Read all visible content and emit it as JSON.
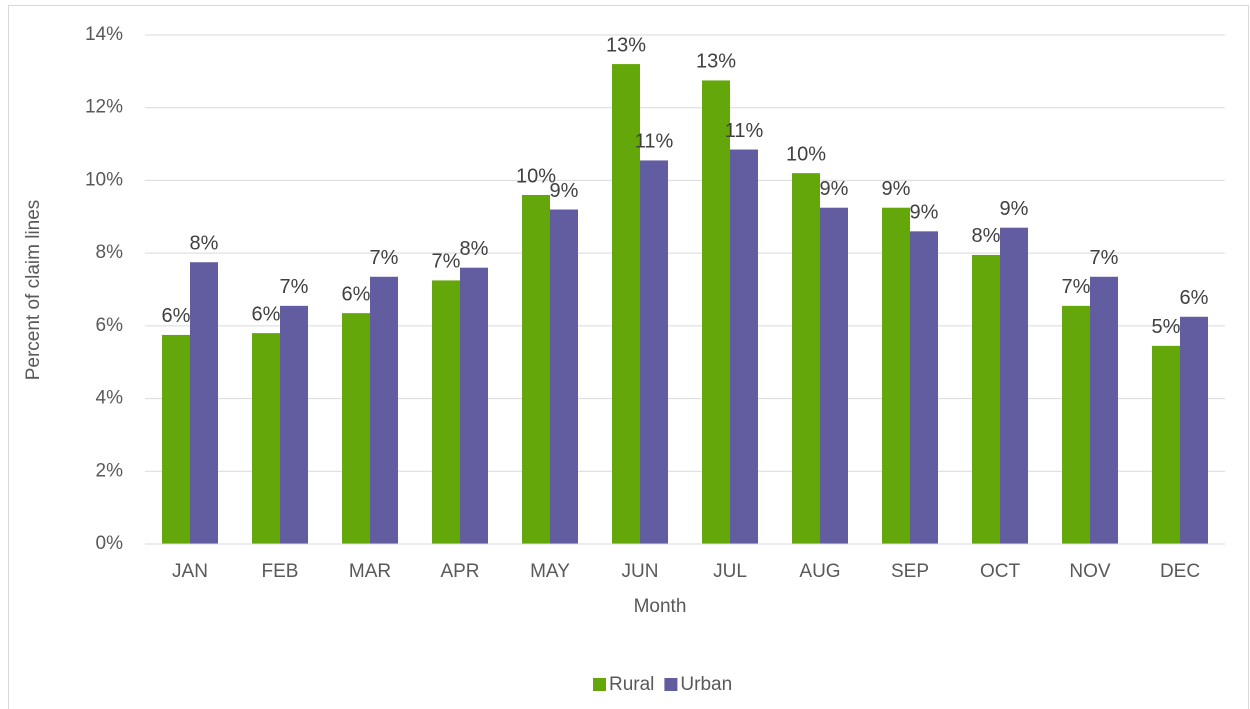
{
  "chart_data": {
    "type": "bar",
    "x_label": "Month",
    "y_label": "Percent of claim lines",
    "categories": [
      "JAN",
      "FEB",
      "MAR",
      "APR",
      "MAY",
      "JUN",
      "JUL",
      "AUG",
      "SEP",
      "OCT",
      "NOV",
      "DEC"
    ],
    "series": [
      {
        "name": "Rural",
        "color": "#63a70a",
        "values": [
          5.75,
          5.8,
          6.35,
          7.25,
          9.6,
          13.2,
          12.75,
          10.2,
          9.25,
          7.95,
          6.55,
          5.45
        ],
        "value_labels": [
          "6%",
          "6%",
          "6%",
          "7%",
          "10%",
          "13%",
          "13%",
          "10%",
          "9%",
          "8%",
          "7%",
          "5%"
        ]
      },
      {
        "name": "Urban",
        "color": "#625ca0",
        "values": [
          7.75,
          6.55,
          7.35,
          7.6,
          9.2,
          10.55,
          10.85,
          9.25,
          8.6,
          8.7,
          7.35,
          6.25
        ],
        "value_labels": [
          "8%",
          "7%",
          "7%",
          "8%",
          "9%",
          "11%",
          "11%",
          "9%",
          "9%",
          "9%",
          "7%",
          "6%"
        ]
      }
    ],
    "ylim": [
      0,
      14
    ],
    "yticks": [
      {
        "value": 0,
        "label": "0%"
      },
      {
        "value": 2,
        "label": "2%"
      },
      {
        "value": 4,
        "label": "4%"
      },
      {
        "value": 6,
        "label": "6%"
      },
      {
        "value": 8,
        "label": "8%"
      },
      {
        "value": 10,
        "label": "10%"
      },
      {
        "value": 12,
        "label": "12%"
      },
      {
        "value": 14,
        "label": "14%"
      }
    ],
    "grid": true,
    "legend": "bottom"
  }
}
